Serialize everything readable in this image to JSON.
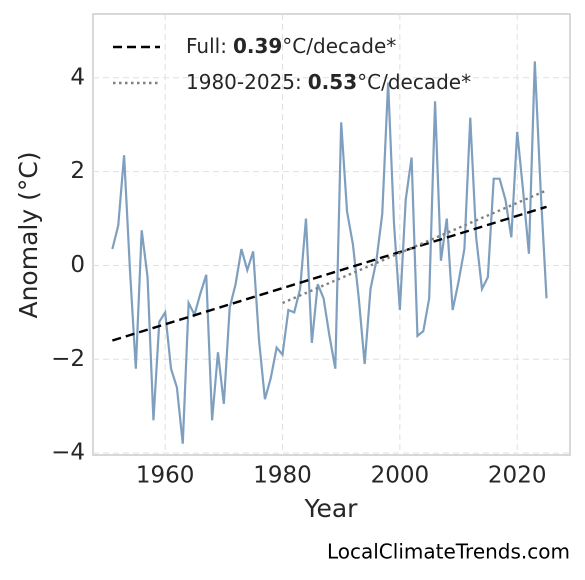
{
  "chart_data": {
    "type": "line",
    "xlabel": "Year",
    "ylabel": "Anomaly (°C)",
    "watermark": "LocalClimateTrends.com",
    "xlim": [
      1947.7,
      2029.0
    ],
    "ylim": [
      -4.04,
      5.36
    ],
    "xticks": [
      1960,
      1980,
      2000,
      2020
    ],
    "yticks": [
      {
        "value": -4,
        "label": "−4"
      },
      {
        "value": -2,
        "label": "−2"
      },
      0,
      2,
      4
    ],
    "grid": true,
    "legend": "upper left",
    "series": [
      {
        "name": "Anomaly",
        "color": "#7f9fbf",
        "style": "solid",
        "x": [
          1951,
          1952,
          1953,
          1954,
          1955,
          1956,
          1957,
          1958,
          1959,
          1960,
          1961,
          1962,
          1963,
          1964,
          1965,
          1966,
          1967,
          1968,
          1969,
          1970,
          1971,
          1972,
          1973,
          1974,
          1975,
          1976,
          1977,
          1978,
          1979,
          1980,
          1981,
          1982,
          1983,
          1984,
          1985,
          1986,
          1987,
          1988,
          1989,
          1990,
          1991,
          1992,
          1993,
          1994,
          1995,
          1996,
          1997,
          1998,
          1999,
          2000,
          2001,
          2002,
          2003,
          2004,
          2005,
          2006,
          2007,
          2008,
          2009,
          2010,
          2011,
          2012,
          2013,
          2014,
          2015,
          2016,
          2017,
          2018,
          2019,
          2020,
          2021,
          2022,
          2023,
          2024,
          2025
        ],
        "values": [
          0.35,
          0.85,
          2.35,
          -0.1,
          -2.2,
          0.75,
          -0.25,
          -3.3,
          -1.2,
          -1.0,
          -2.2,
          -2.6,
          -3.8,
          -0.8,
          -1.05,
          -0.6,
          -0.2,
          -3.3,
          -1.85,
          -2.95,
          -0.9,
          -0.4,
          0.35,
          -0.1,
          0.3,
          -1.6,
          -2.85,
          -2.4,
          -1.75,
          -1.9,
          -0.95,
          -1.0,
          -0.5,
          1.0,
          -1.65,
          -0.4,
          -0.7,
          -1.5,
          -2.2,
          3.05,
          1.15,
          0.45,
          -0.7,
          -2.1,
          -0.5,
          0.1,
          1.1,
          3.9,
          0.9,
          -0.95,
          1.4,
          2.3,
          -1.5,
          -1.4,
          -0.7,
          3.5,
          0.1,
          1.0,
          -0.95,
          -0.35,
          0.35,
          3.15,
          0.6,
          -0.5,
          -0.25,
          1.85,
          1.85,
          1.4,
          0.6,
          2.85,
          1.6,
          0.25,
          4.35,
          1.6,
          -0.7
        ]
      },
      {
        "name": "Full:",
        "rate": 0.39,
        "rate_unit": "°C/decade*",
        "color": "#000000",
        "style": "dashed",
        "x": [
          1951,
          2025
        ],
        "values": [
          -1.6,
          1.25
        ]
      },
      {
        "name": "1980-2025:",
        "rate": 0.53,
        "rate_unit": "°C/decade*",
        "color": "#808080",
        "style": "dotted",
        "x": [
          1980,
          2025
        ],
        "values": [
          -0.8,
          1.6
        ]
      }
    ]
  }
}
